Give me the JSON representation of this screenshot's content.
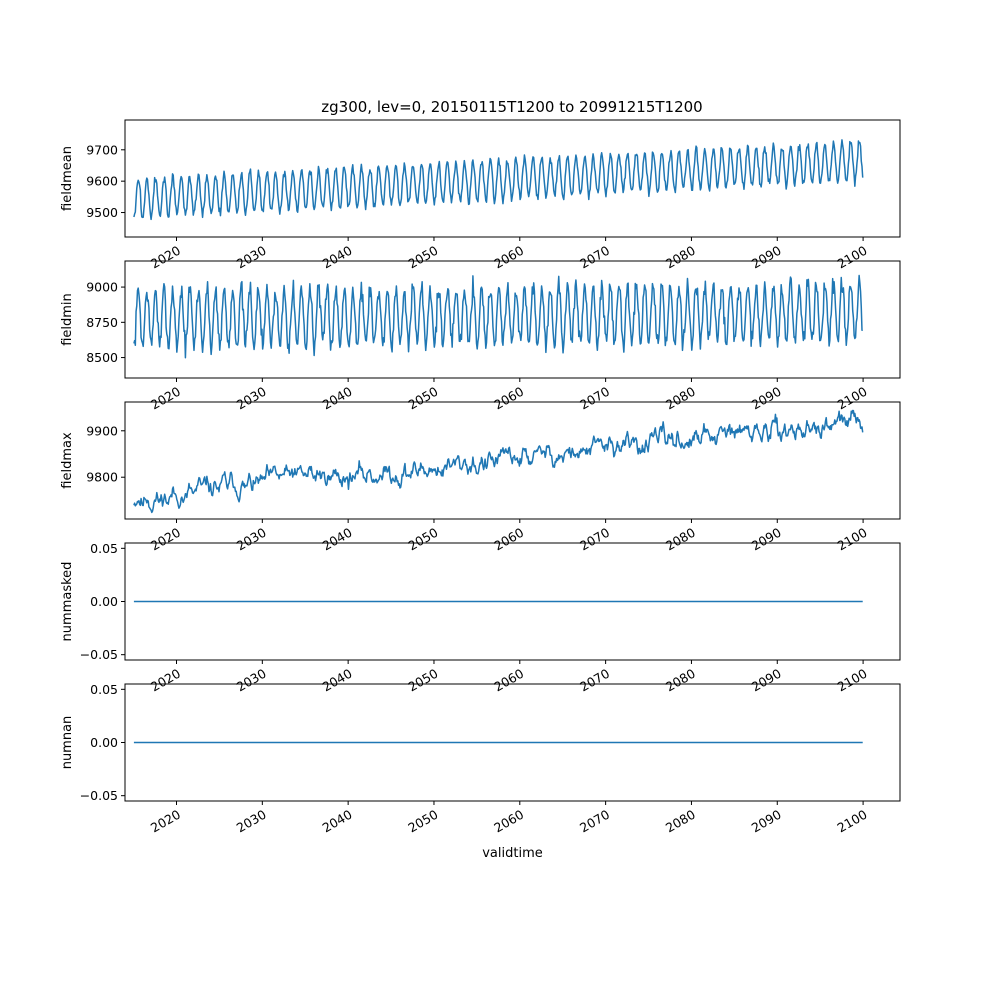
{
  "figure_title": "zg300, lev=0, 20150115T1200 to 20991215T1200",
  "colors": {
    "line": "#1f77b4",
    "axes": "#000000",
    "background": "#ffffff"
  },
  "chart_data": [
    {
      "type": "line",
      "ylabel": "fieldmean",
      "xlabel": "",
      "x_range": [
        "2015-01-15",
        "2099-12-15"
      ],
      "xlim": [
        2014.0,
        2104.3
      ],
      "ylim": [
        9422,
        9795
      ],
      "yticks": [
        9500,
        9600,
        9700
      ],
      "ytick_labels": [
        "9500",
        "9600",
        "9700"
      ],
      "xticks": [
        2020,
        2030,
        2040,
        2050,
        2060,
        2070,
        2080,
        2090,
        2100
      ],
      "xtick_labels": [
        "2020",
        "2030",
        "2040",
        "2050",
        "2060",
        "2070",
        "2080",
        "2090",
        "2100"
      ],
      "series": [
        {
          "model": "seasonal",
          "frequency": "monthly",
          "base_start": 9545,
          "base_end": 9665,
          "amplitude": 62,
          "amplitude_growth": 0.0,
          "noise": 9,
          "min_value": 9430,
          "max_value": 9785,
          "seed": 3
        }
      ]
    },
    {
      "type": "line",
      "ylabel": "fieldmin",
      "xlabel": "",
      "x_range": [
        "2015-01-15",
        "2099-12-15"
      ],
      "xlim": [
        2014.0,
        2104.3
      ],
      "ylim": [
        8355,
        9185
      ],
      "yticks": [
        8500,
        8750,
        9000
      ],
      "ytick_labels": [
        "8500",
        "8750",
        "9000"
      ],
      "xticks": [
        2020,
        2030,
        2040,
        2050,
        2060,
        2070,
        2080,
        2090,
        2100
      ],
      "xtick_labels": [
        "2020",
        "2030",
        "2040",
        "2050",
        "2060",
        "2070",
        "2080",
        "2090",
        "2100"
      ],
      "series": [
        {
          "model": "seasonal",
          "frequency": "monthly",
          "base_start": 8780,
          "base_end": 8820,
          "amplitude": 200,
          "amplitude_growth": 0.0,
          "noise": 45,
          "min_value": 8380,
          "max_value": 9160,
          "seed": 7
        }
      ]
    },
    {
      "type": "line",
      "ylabel": "fieldmax",
      "xlabel": "",
      "x_range": [
        "2015-01-15",
        "2099-12-15"
      ],
      "xlim": [
        2014.0,
        2104.3
      ],
      "ylim": [
        9710,
        9962
      ],
      "yticks": [
        9800,
        9900
      ],
      "ytick_labels": [
        "9800",
        "9900"
      ],
      "xticks": [
        2020,
        2030,
        2040,
        2050,
        2060,
        2070,
        2080,
        2090,
        2100
      ],
      "xtick_labels": [
        "2020",
        "2030",
        "2040",
        "2050",
        "2060",
        "2070",
        "2080",
        "2090",
        "2100"
      ],
      "series": [
        {
          "model": "trend",
          "frequency": "monthly",
          "base_start": 9755,
          "base_end": 9915,
          "amplitude": 10,
          "amplitude_growth": 0.0,
          "noise": 11,
          "min_value": 9718,
          "max_value": 9950,
          "seed": 11
        }
      ]
    },
    {
      "type": "line",
      "ylabel": "nummasked",
      "xlabel": "",
      "x_range": [
        "2015-01-15",
        "2099-12-15"
      ],
      "xlim": [
        2014.0,
        2104.3
      ],
      "ylim": [
        -0.055,
        0.055
      ],
      "yticks": [
        -0.05,
        0.0,
        0.05
      ],
      "ytick_labels": [
        "−0.05",
        "0.00",
        "0.05"
      ],
      "xticks": [
        2020,
        2030,
        2040,
        2050,
        2060,
        2070,
        2080,
        2090,
        2100
      ],
      "xtick_labels": [
        "2020",
        "2030",
        "2040",
        "2050",
        "2060",
        "2070",
        "2080",
        "2090",
        "2100"
      ],
      "series": [
        {
          "model": "constant",
          "value": 0.0
        }
      ]
    },
    {
      "type": "line",
      "ylabel": "numnan",
      "xlabel": "validtime",
      "x_range": [
        "2015-01-15",
        "2099-12-15"
      ],
      "xlim": [
        2014.0,
        2104.3
      ],
      "ylim": [
        -0.055,
        0.055
      ],
      "yticks": [
        -0.05,
        0.0,
        0.05
      ],
      "ytick_labels": [
        "−0.05",
        "0.00",
        "0.05"
      ],
      "xticks": [
        2020,
        2030,
        2040,
        2050,
        2060,
        2070,
        2080,
        2090,
        2100
      ],
      "xtick_labels": [
        "2020",
        "2030",
        "2040",
        "2050",
        "2060",
        "2070",
        "2080",
        "2090",
        "2100"
      ],
      "series": [
        {
          "model": "constant",
          "value": 0.0
        }
      ]
    }
  ]
}
